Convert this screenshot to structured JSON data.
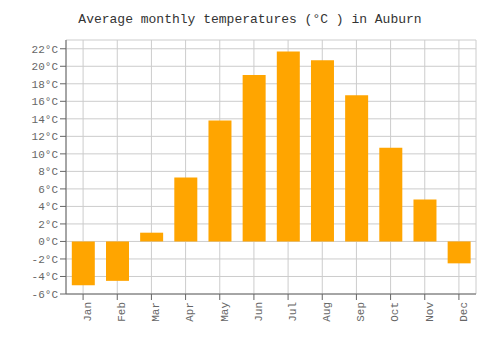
{
  "chart_data": {
    "type": "bar",
    "title": "Average monthly temperatures (°C ) in Auburn",
    "categories": [
      "Jan",
      "Feb",
      "Mar",
      "Apr",
      "May",
      "Jun",
      "Jul",
      "Aug",
      "Sep",
      "Oct",
      "Nov",
      "Dec"
    ],
    "values": [
      -5.0,
      -4.5,
      1.0,
      7.3,
      13.8,
      19.0,
      21.7,
      20.7,
      16.7,
      10.7,
      4.8,
      -2.5
    ],
    "color": "#FFA500",
    "ylim": [
      -6,
      23
    ],
    "yticks": [
      {
        "value": -6,
        "label": "-6°C"
      },
      {
        "value": -4,
        "label": "-4°C"
      },
      {
        "value": -2,
        "label": "-2°C"
      },
      {
        "value": 0,
        "label": "0°C"
      },
      {
        "value": 2,
        "label": "2°C"
      },
      {
        "value": 4,
        "label": "4°C"
      },
      {
        "value": 6,
        "label": "6°C"
      },
      {
        "value": 8,
        "label": "8°C"
      },
      {
        "value": 10,
        "label": "10°C"
      },
      {
        "value": 12,
        "label": "12°C"
      },
      {
        "value": 14,
        "label": "14°C"
      },
      {
        "value": 16,
        "label": "16°C"
      },
      {
        "value": 18,
        "label": "18°C"
      },
      {
        "value": 20,
        "label": "20°C"
      },
      {
        "value": 22,
        "label": "22°C"
      }
    ],
    "grid": true
  }
}
